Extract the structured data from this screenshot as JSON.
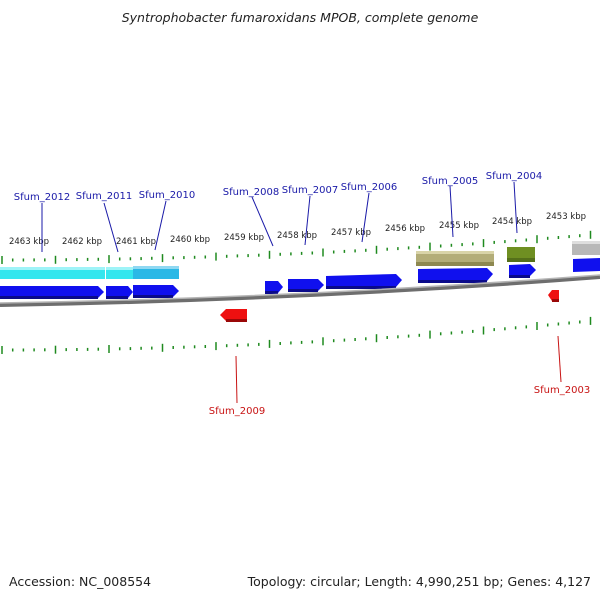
{
  "title": "Syntrophobacter fumaroxidans MPOB, complete genome",
  "footer": {
    "accession": "Accession: NC_008554",
    "summary": "Topology: circular; Length: 4,990,251 bp; Genes: 4,127"
  },
  "colors": {
    "forward_gene": "#1010ee",
    "reverse_gene": "#ee1010",
    "forward_label": "#1a1aa8",
    "reverse_label": "#c81414",
    "tick": "#1f8a1f",
    "backbone": "#8a8a8a",
    "feature_cyan": "#33e6ee",
    "feature_cyan_alt": "#2ab8e6",
    "feature_olive": "#b3ad78",
    "feature_green": "#6f8f22",
    "feature_grey": "#b8b8b8"
  },
  "scale_labels": [
    "2463 kbp",
    "2462 kbp",
    "2461 kbp",
    "2460 kbp",
    "2459 kbp",
    "2458 kbp",
    "2457 kbp",
    "2456 kbp",
    "2455 kbp",
    "2454 kbp",
    "2453 kbp"
  ],
  "genes_forward": [
    "Sfum_2012",
    "Sfum_2011",
    "Sfum_2010",
    "Sfum_2008",
    "Sfum_2007",
    "Sfum_2006",
    "Sfum_2005",
    "Sfum_2004"
  ],
  "genes_reverse": [
    "Sfum_2009",
    "Sfum_2003"
  ]
}
